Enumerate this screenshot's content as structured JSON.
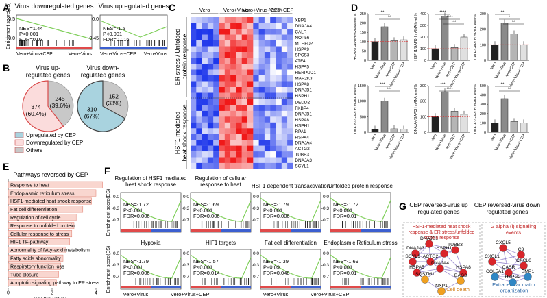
{
  "panel_letters": [
    "A",
    "B",
    "C",
    "D",
    "E",
    "F",
    "G"
  ],
  "panel_a": {
    "plots": [
      {
        "title": "Virus downregulated genes",
        "ylabel": "Enrichment score(ES)",
        "yticks": [
          "0.5",
          "0.0"
        ],
        "stats": [
          "NES=1.44",
          "P<0.001",
          "FDR=0.03"
        ],
        "xlabels": [
          "Vero+Virus+CEP",
          "Vero+Virus"
        ]
      },
      {
        "title": "Virus upregulated genes",
        "ylabel": "",
        "yticks": [
          "0.0",
          "-0.45"
        ],
        "stats": [
          "NES=-1.5",
          "P<0.001",
          "FDR=0.016"
        ],
        "xlabels": [
          "Vero+Virus+CEP",
          "Vero+Virus"
        ]
      }
    ]
  },
  "panel_b": {
    "titles": [
      "Virus up-\nregulated genes",
      "Virus down-\nregulated genes"
    ],
    "pies": [
      {
        "slices": [
          {
            "count": "245",
            "pct": "(39.6%)",
            "value": 39.6,
            "color": "#c8c8c8"
          },
          {
            "count": "374",
            "pct": "(60.4%)",
            "value": 60.4,
            "color": "#fbdcdc"
          }
        ]
      },
      {
        "slices": [
          {
            "count": "152",
            "pct": "(33%)",
            "value": 33,
            "color": "#c8c8c8"
          },
          {
            "count": "310",
            "pct": "(67%)",
            "value": 67,
            "color": "#a9d3df"
          }
        ]
      }
    ],
    "legend": [
      {
        "label": "Upregulated by CEP",
        "color": "#a9d3df"
      },
      {
        "label": "Downregulated by CEP",
        "color": "#fbdcdc"
      },
      {
        "label": "Others",
        "color": "#c8c8c8"
      }
    ]
  },
  "panel_c": {
    "groups": [
      "Vero",
      "Vero+Virus",
      "Vero+Virus+CEP",
      "Vero+CEP"
    ],
    "block1_label": "ER stress / Unfolded\nprotein response",
    "block2_label": "HSF1 mediated\nheat shock response",
    "genes1": [
      "XBP1",
      "DNAJA4",
      "CALR",
      "NOP56",
      "MTHFD2",
      "HSPA9",
      "SPCS3",
      "ATF4",
      "HSPA5",
      "HERPUD1",
      "MAP2K3",
      "HSPA8",
      "DNAJB1",
      "HSPH1"
    ],
    "genes2": [
      "DEDD2",
      "FKBP4",
      "DNAJB1",
      "HSPA8",
      "HSPH1",
      "RPA1",
      "HSPA4",
      "DNAJA4",
      "ACTG2",
      "TUBB3",
      "DNAJA3",
      "SCYL1"
    ]
  },
  "panel_d": {
    "categories": [
      "Vero",
      "Vero+Virus",
      "Vero+CEP",
      "Vero+Virus+CEP"
    ],
    "charts": [
      {
        "ylabel": "HSPA8/GAPDH mRNA level %",
        "ymax": 250,
        "ticks": [
          "0",
          "50",
          "100",
          "150",
          "200",
          "250"
        ],
        "values": [
          100,
          180,
          105,
          110
        ],
        "sig": [
          "**",
          "**"
        ]
      },
      {
        "ylabel": "HSPH1/GAPDH mRNA level %",
        "ymax": 400,
        "ticks": [
          "0",
          "100",
          "200",
          "300",
          "400"
        ],
        "values": [
          100,
          380,
          110,
          200
        ],
        "sig": [
          "****",
          "****",
          "***"
        ]
      },
      {
        "ylabel": "CALR/GAPDH mRNA level %",
        "ymax": 300,
        "ticks": [
          "0",
          "100",
          "200",
          "300"
        ],
        "values": [
          100,
          240,
          170,
          100
        ],
        "sig": [
          "**",
          "*",
          "**"
        ]
      },
      {
        "ylabel": "DNAJB1/GAPDH mRNA level %",
        "ymax": 1500,
        "ticks": [
          "0",
          "500",
          "1000",
          "1500"
        ],
        "values": [
          100,
          1000,
          110,
          100
        ],
        "sig": [
          "***",
          "***"
        ]
      },
      {
        "ylabel": "DNAJA4/GAPDH mRNA level %",
        "ymax": 300,
        "ticks": [
          "0",
          "100",
          "200",
          "300"
        ],
        "values": [
          100,
          260,
          135,
          115
        ],
        "sig": [
          "***",
          "****"
        ]
      },
      {
        "ylabel": "DNAJA3/GAPDH mRNA level %",
        "ymax": 500,
        "ticks": [
          "0",
          "100",
          "200",
          "300",
          "400",
          "500"
        ],
        "values": [
          100,
          360,
          115,
          100
        ],
        "sig": [
          "**",
          "**"
        ]
      }
    ]
  },
  "panel_e": {
    "title": "Pathways reversed by CEP",
    "xlabel": "-log10(p-value)",
    "xticks": [
      "0",
      "2",
      "4"
    ],
    "bars": [
      {
        "label": "Response to heat",
        "value": 4.3
      },
      {
        "label": "Endoplasmic reticulum stress",
        "value": 4.0
      },
      {
        "label": "HSF1-mediated heat shock response",
        "value": 3.8
      },
      {
        "label": "Fat cell differentiation",
        "value": 3.4
      },
      {
        "label": "Regulation of cell cycle",
        "value": 3.1
      },
      {
        "label": "Response to unfolded protein",
        "value": 3.0
      },
      {
        "label": "Cellular response to stress",
        "value": 2.9
      },
      {
        "label": "HIF1 TF-pathway",
        "value": 2.8
      },
      {
        "label": "Abnormality of fatty-acid metabolism",
        "value": 2.6
      },
      {
        "label": "Fatty acids abnormality",
        "value": 2.5
      },
      {
        "label": "Respiratory function loss",
        "value": 2.4
      },
      {
        "label": "Tube closure",
        "value": 2.3
      },
      {
        "label": "Apoptotic signaling pathway to ER stress",
        "value": 2.2
      }
    ]
  },
  "panel_f": {
    "ylabel": "Enrichment score(ES)",
    "xlabels": [
      "Vero+Virus",
      "Vero+Virus+CEP"
    ],
    "plots": [
      {
        "title": "Regulation of HSF1 mediated\nheat shock response",
        "yticks": [
          "0.0",
          "-0.3",
          "-0.7"
        ],
        "stats": [
          "NES=-1.72",
          "P<0.001",
          "FDR=0.006"
        ]
      },
      {
        "title": "Regulation of cellular\nresponse to heat",
        "yticks": [
          "0.0",
          "-0.3",
          "-0.7"
        ],
        "stats": [
          "NES=-1.69",
          "P<0.001",
          "FDR=0.006"
        ]
      },
      {
        "title": "HSF1 dependent transactivation",
        "yticks": [
          "0.0",
          "-0.3",
          "-0.7"
        ],
        "stats": [
          "NES=-1.79",
          "P<0.001",
          "FDR=0.006"
        ]
      },
      {
        "title": "Unfolded protein response",
        "yticks": [
          "0.0",
          "-0.3",
          "-0.7"
        ],
        "stats": [
          "NES=-1.72",
          "P<0.001",
          "FDR=0.01"
        ]
      },
      {
        "title": "Hypoxia",
        "yticks": [
          "0.0",
          "-0.3",
          "-0.7"
        ],
        "stats": [
          "NES=-1.79",
          "P<0.001",
          "FDR=0.006"
        ]
      },
      {
        "title": "HIF1 targets",
        "yticks": [
          "0.0",
          "-0.3",
          "-0.7"
        ],
        "stats": [
          "NES=-1.57",
          "P<0.001",
          "FDR=0.014"
        ]
      },
      {
        "title": "Fat cell differentiation",
        "yticks": [
          "0.0",
          "-0.3",
          "-0.7"
        ],
        "stats": [
          "NES=-1.39",
          "P=0.09",
          "FDR=0.048"
        ]
      },
      {
        "title": "Endoplasmic Reticulum stress",
        "yticks": [
          "0.0",
          "-0.3",
          "-0.7"
        ],
        "stats": [
          "NES=-1.69",
          "P<0.001",
          "FDR=0.01"
        ]
      }
    ]
  },
  "panel_g": {
    "title_left": "CEP reversed-virus up\nregulated genes",
    "title_right": "CEP reversed-virus down\nregulated genes",
    "red_label_left": "HSF1-mediated heat shock\nresponse & ER stress/unfolded\nprotein response",
    "orange_label": "Cell death",
    "red_label_right": "G alpha (i) signaling\nevents",
    "blue_label": "Extracellular matrix\norganization",
    "nodes_left": [
      "DNAJB1",
      "DNAJA3",
      "TUBB3",
      "HSPH1",
      "SCYL1",
      "ACTG2",
      "HSPA5",
      "DNAJA4",
      "HSPA8",
      "SQSTM1",
      "BAG3",
      "NXP1"
    ],
    "nodes_right": [
      "CXCL5",
      "CXCL1",
      "C3",
      "CXCL6",
      "CASR",
      "COL5A1",
      "BMP1",
      "HSPG2"
    ]
  }
}
